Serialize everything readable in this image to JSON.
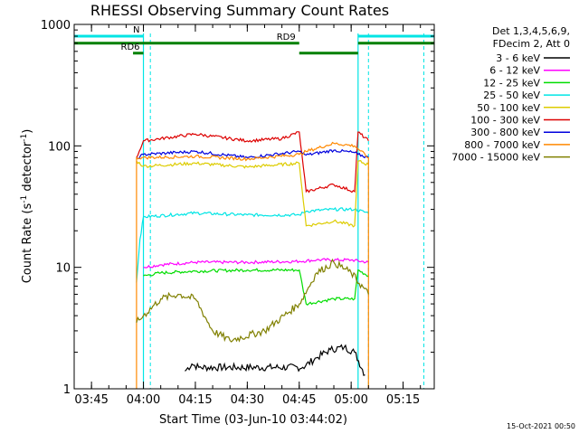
{
  "chart_data": {
    "type": "line",
    "title": "RHESSI Observing Summary Count Rates",
    "xlabel": "Start Time (03-Jun-10 03:44:02)",
    "ylabel": "Count Rate (s⁻¹ detector⁻¹)",
    "ylabel_parts": {
      "main": "Count Rate (s",
      "exp1": "-1",
      "mid": " detector",
      "exp2": "-1",
      "end": ")"
    },
    "y_scale": "log",
    "ylim": [
      1,
      1000
    ],
    "xlim": [
      "03:40",
      "05:24"
    ],
    "x_ticks": [
      "03:45",
      "04:00",
      "04:15",
      "04:30",
      "04:45",
      "05:00",
      "05:15"
    ],
    "y_ticks": [
      {
        "value": 1,
        "label": "1"
      },
      {
        "value": 10,
        "label": "10"
      },
      {
        "value": 100,
        "label": "100"
      },
      {
        "value": 1000,
        "label": "1000"
      }
    ],
    "grid": false,
    "legend_position": "outside-right",
    "legend_header": [
      "Det 1,3,4,5,6,9,",
      "FDecim 2, Att 0"
    ],
    "series": [
      {
        "name": "3 - 6 keV",
        "color": "#000000",
        "points": [
          [
            "04:12",
            1.4
          ],
          [
            "04:14",
            1.6
          ],
          [
            "04:16",
            1.5
          ],
          [
            "04:46",
            1.5
          ],
          [
            "04:50",
            1.8
          ],
          [
            "04:54",
            2.1
          ],
          [
            "04:58",
            2.2
          ],
          [
            "05:01",
            2.0
          ],
          [
            "05:04",
            1.3
          ]
        ]
      },
      {
        "name": "6 - 12 keV",
        "color": "#ff00ff",
        "points": [
          [
            "04:00",
            10
          ],
          [
            "04:05",
            10.5
          ],
          [
            "04:15",
            11
          ],
          [
            "04:30",
            11
          ],
          [
            "04:45",
            11.2
          ],
          [
            "04:50",
            11.5
          ],
          [
            "05:00",
            11.5
          ],
          [
            "05:05",
            11
          ]
        ]
      },
      {
        "name": "12 - 25 keV",
        "color": "#00dd00",
        "points": [
          [
            "04:00",
            8.5
          ],
          [
            "04:05",
            9
          ],
          [
            "04:15",
            9.3
          ],
          [
            "04:30",
            9.5
          ],
          [
            "04:45",
            9.5
          ],
          [
            "04:47",
            5
          ],
          [
            "04:55",
            5.5
          ],
          [
            "05:01",
            5.5
          ],
          [
            "05:02",
            9.5
          ],
          [
            "05:05",
            8.5
          ]
        ]
      },
      {
        "name": "25 - 50 keV",
        "color": "#00e5e5",
        "points": [
          [
            "03:58",
            7.5
          ],
          [
            "03:59",
            17
          ],
          [
            "04:00",
            26
          ],
          [
            "04:15",
            28
          ],
          [
            "04:30",
            27
          ],
          [
            "04:45",
            27
          ],
          [
            "04:47",
            29
          ],
          [
            "04:55",
            30
          ],
          [
            "05:01",
            30
          ],
          [
            "05:05",
            28
          ]
        ]
      },
      {
        "name": "50 - 100 keV",
        "color": "#ddcc00",
        "points": [
          [
            "03:58",
            75
          ],
          [
            "04:00",
            68
          ],
          [
            "04:15",
            72
          ],
          [
            "04:30",
            67
          ],
          [
            "04:45",
            72
          ],
          [
            "04:47",
            22
          ],
          [
            "04:55",
            24
          ],
          [
            "05:01",
            22
          ],
          [
            "05:02",
            75
          ],
          [
            "05:05",
            70
          ]
        ]
      },
      {
        "name": "100 - 300 keV",
        "color": "#dd0000",
        "points": [
          [
            "03:58",
            80
          ],
          [
            "04:00",
            110
          ],
          [
            "04:15",
            125
          ],
          [
            "04:30",
            110
          ],
          [
            "04:40",
            115
          ],
          [
            "04:45",
            130
          ],
          [
            "04:47",
            42
          ],
          [
            "04:55",
            48
          ],
          [
            "05:01",
            42
          ],
          [
            "05:02",
            130
          ],
          [
            "05:05",
            110
          ]
        ]
      },
      {
        "name": "300 - 800 keV",
        "color": "#0000dd",
        "points": [
          [
            "03:58",
            78
          ],
          [
            "04:00",
            85
          ],
          [
            "04:15",
            90
          ],
          [
            "04:30",
            80
          ],
          [
            "04:45",
            90
          ],
          [
            "04:47",
            84
          ],
          [
            "04:55",
            92
          ],
          [
            "05:01",
            88
          ],
          [
            "05:02",
            85
          ],
          [
            "05:05",
            80
          ]
        ]
      },
      {
        "name": "800 - 7000 keV",
        "color": "#ff8800",
        "points": [
          [
            "03:58",
            1
          ],
          [
            "03:58",
            80
          ],
          [
            "04:00",
            80
          ],
          [
            "04:15",
            82
          ],
          [
            "04:30",
            78
          ],
          [
            "04:45",
            85
          ],
          [
            "04:47",
            90
          ],
          [
            "04:55",
            105
          ],
          [
            "05:01",
            100
          ],
          [
            "05:05",
            80
          ],
          [
            "05:05",
            1
          ]
        ]
      },
      {
        "name": "7000 - 15000 keV",
        "color": "#808000",
        "points": [
          [
            "03:58",
            3.5
          ],
          [
            "04:00",
            4
          ],
          [
            "04:05",
            5.5
          ],
          [
            "04:10",
            6
          ],
          [
            "04:15",
            5.5
          ],
          [
            "04:20",
            3
          ],
          [
            "04:25",
            2.5
          ],
          [
            "04:35",
            3
          ],
          [
            "04:45",
            5
          ],
          [
            "04:50",
            9
          ],
          [
            "04:55",
            11
          ],
          [
            "05:00",
            9
          ],
          [
            "05:05",
            6
          ]
        ]
      }
    ],
    "annotations": {
      "flags": [
        {
          "label": "N",
          "color": "#00e5e5",
          "level": 800,
          "segments": [
            [
              "03:40",
              "04:00"
            ],
            [
              "05:02",
              "05:24"
            ]
          ]
        },
        {
          "label": "RD9",
          "color": "#008000",
          "level": 700,
          "segments": [
            [
              "03:40",
              "04:45"
            ],
            [
              "05:02",
              "05:24"
            ]
          ]
        },
        {
          "label": "RD6",
          "color": "#008000",
          "level": 580,
          "segments": [
            [
              "03:57",
              "04:00"
            ],
            [
              "04:45",
              "05:02"
            ]
          ]
        }
      ],
      "solid_vlines": [
        "04:00",
        "05:02"
      ],
      "dashed_vlines": [
        "04:02",
        "05:05",
        "05:21"
      ],
      "vline_color": "#00e5e5"
    },
    "timestamp": "15-Oct-2021 00:50"
  }
}
